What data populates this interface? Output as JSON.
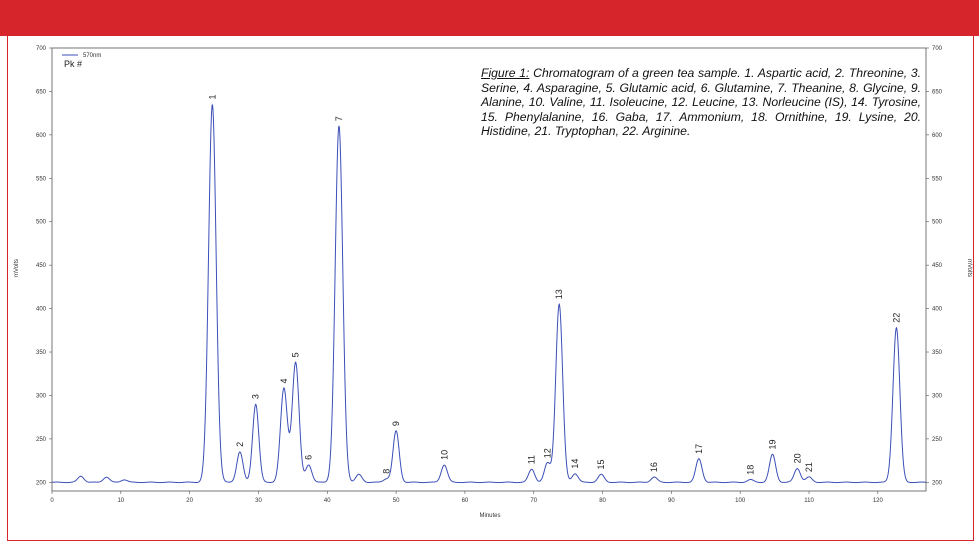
{
  "chart_data": {
    "type": "line",
    "caption_title": "Figure 1:",
    "caption_text": "Chromatogram of a green tea sample. 1. Aspartic acid, 2. Threonine, 3. Serine, 4. Asparagine, 5. Glutamic acid, 6. Glutamine, 7. Theanine, 8. Glycine, 9. Alanine, 10. Valine, 11. Isoleucine, 12. Leucine, 13. Norleucine (IS), 14. Tyrosine, 15. Phenylalanine, 16. Gaba, 17. Ammonium, 18. Ornithine, 19. Lysine, 20. Histidine, 21. Tryptophan, 22. Arginine.",
    "xlabel": "Minutes",
    "ylabel": "mVolts",
    "xlim": [
      0,
      127
    ],
    "ylim": [
      190,
      700
    ],
    "x_ticks": [
      0,
      10,
      20,
      30,
      40,
      50,
      60,
      70,
      80,
      90,
      100,
      110,
      120
    ],
    "y_ticks": [
      200,
      250,
      300,
      350,
      400,
      450,
      500,
      550,
      600,
      650,
      700
    ],
    "legend": {
      "series_name": "570nm",
      "header": "Pk #",
      "position": "top-left"
    },
    "baseline": 200,
    "line_color": "#3b4fb8",
    "peaks": [
      {
        "label": "",
        "x": 4.2,
        "y": 207
      },
      {
        "label": "",
        "x": 7.9,
        "y": 206
      },
      {
        "label": "",
        "x": 10.5,
        "y": 203
      },
      {
        "label": "1",
        "x": 23.3,
        "y": 635
      },
      {
        "label": "2",
        "x": 27.3,
        "y": 235
      },
      {
        "label": "3",
        "x": 29.6,
        "y": 290
      },
      {
        "label": "4",
        "x": 33.7,
        "y": 308
      },
      {
        "label": "5",
        "x": 35.4,
        "y": 338
      },
      {
        "label": "6",
        "x": 37.3,
        "y": 220
      },
      {
        "label": "7",
        "x": 41.7,
        "y": 610
      },
      {
        "label": "",
        "x": 44.6,
        "y": 209
      },
      {
        "label": "8",
        "x": 48.6,
        "y": 204
      },
      {
        "label": "9",
        "x": 50.0,
        "y": 259
      },
      {
        "label": "10",
        "x": 57.0,
        "y": 220
      },
      {
        "label": "11",
        "x": 69.7,
        "y": 215
      },
      {
        "label": "12",
        "x": 72.0,
        "y": 222
      },
      {
        "label": "13",
        "x": 73.7,
        "y": 405
      },
      {
        "label": "14",
        "x": 76.0,
        "y": 210
      },
      {
        "label": "15",
        "x": 79.8,
        "y": 209
      },
      {
        "label": "16",
        "x": 87.5,
        "y": 206
      },
      {
        "label": "17",
        "x": 94.0,
        "y": 227
      },
      {
        "label": "18",
        "x": 101.5,
        "y": 203
      },
      {
        "label": "19",
        "x": 104.7,
        "y": 232
      },
      {
        "label": "20",
        "x": 108.3,
        "y": 216
      },
      {
        "label": "21",
        "x": 110.0,
        "y": 206
      },
      {
        "label": "22",
        "x": 122.7,
        "y": 378
      }
    ]
  }
}
